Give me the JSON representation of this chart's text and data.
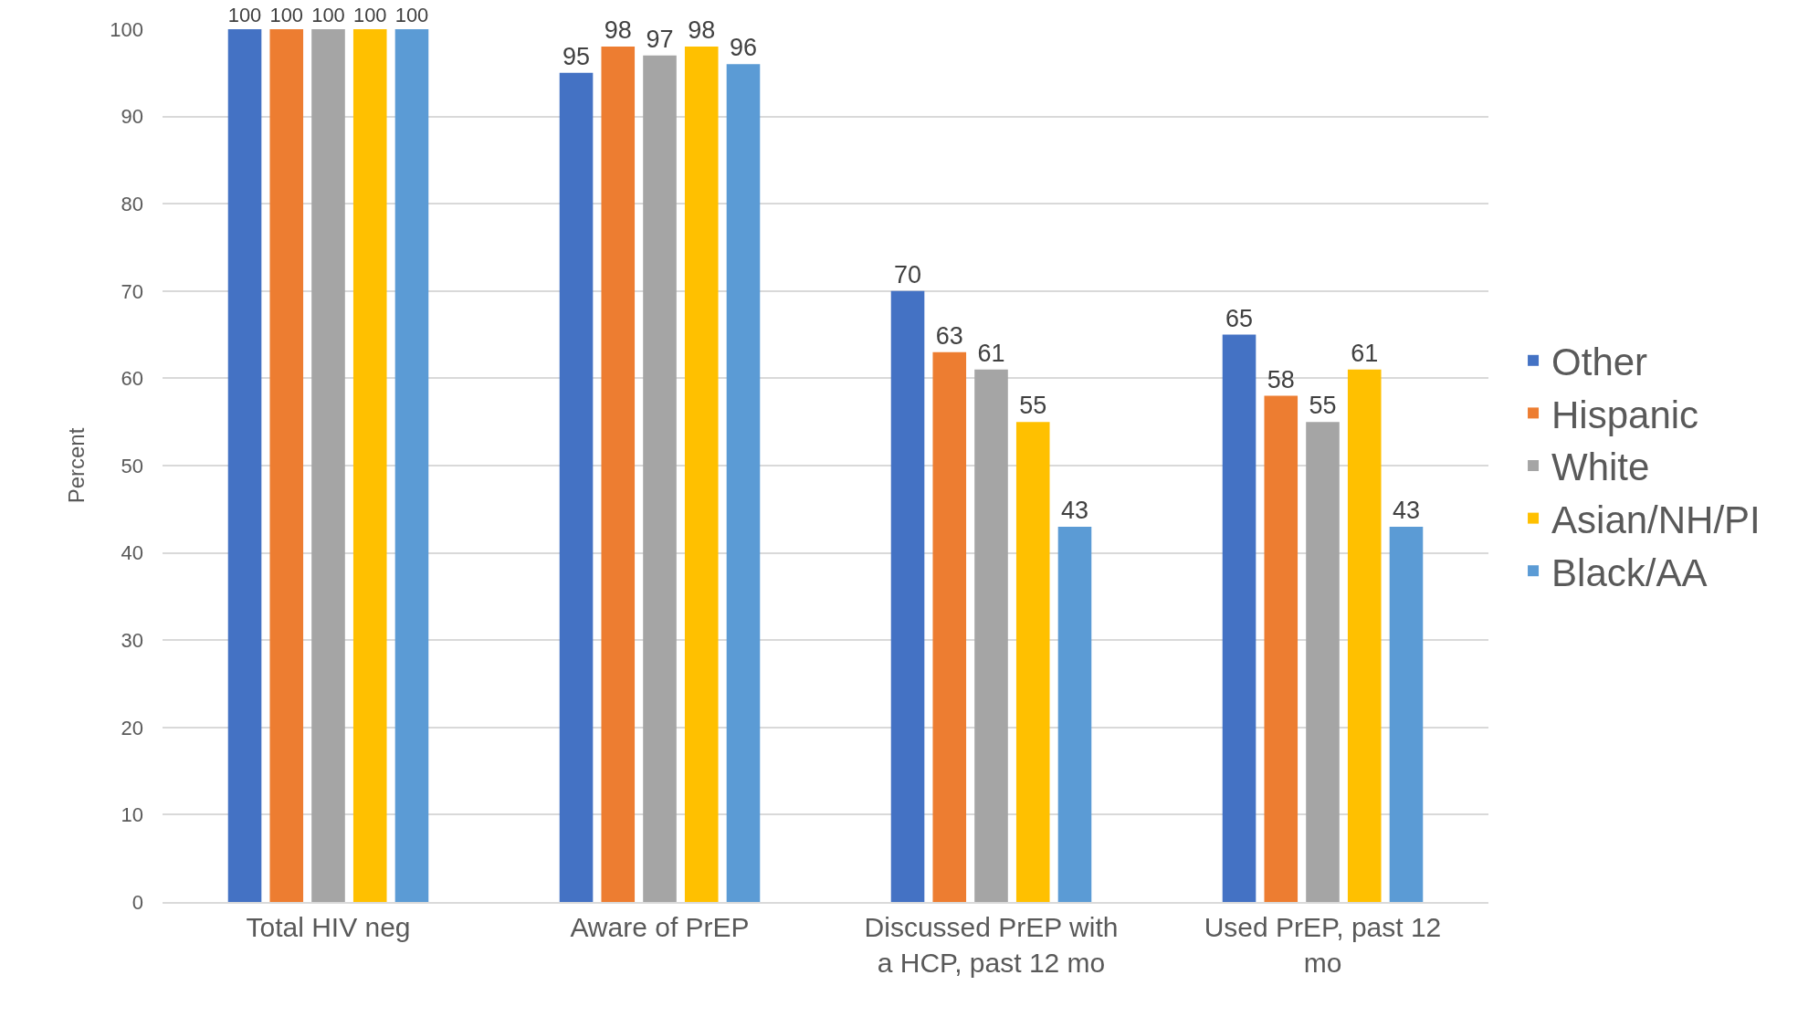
{
  "chart_data": {
    "type": "bar",
    "ylabel": "Percent",
    "categories": [
      "Total HIV neg",
      "Aware of PrEP",
      "Discussed PrEP with a HCP, past 12 mo",
      "Used PrEP, past 12 mo"
    ],
    "series": [
      {
        "name": "Other",
        "color": "#4472c4",
        "values": [
          100,
          95,
          70,
          65
        ]
      },
      {
        "name": "Hispanic",
        "color": "#ed7d31",
        "values": [
          100,
          98,
          63,
          58
        ]
      },
      {
        "name": "White",
        "color": "#a5a5a5",
        "values": [
          100,
          97,
          61,
          55
        ]
      },
      {
        "name": "Asian/NH/PI",
        "color": "#ffc000",
        "values": [
          100,
          98,
          55,
          61
        ]
      },
      {
        "name": "Black/AA",
        "color": "#5b9bd5",
        "values": [
          100,
          96,
          43,
          43
        ]
      }
    ],
    "ylim": [
      0,
      100
    ],
    "yticks": [
      0,
      10,
      20,
      30,
      40,
      50,
      60,
      70,
      80,
      90,
      100
    ],
    "grid": "y",
    "legend": "right",
    "data_labels": true
  }
}
